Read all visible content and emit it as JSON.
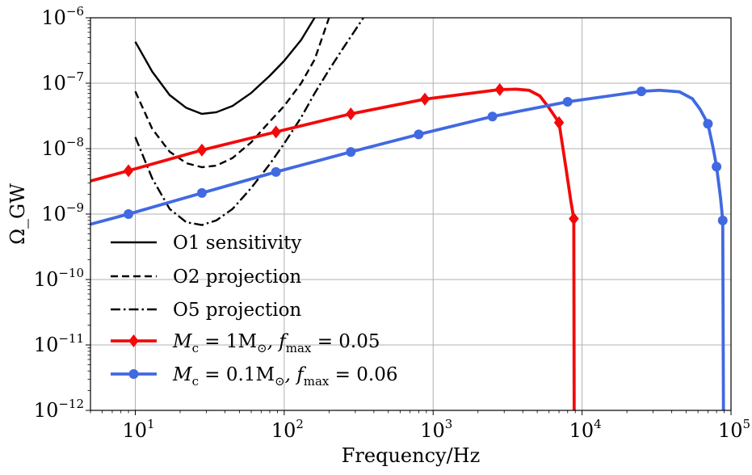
{
  "chart_data": {
    "type": "line",
    "xscale": "log",
    "yscale": "log",
    "xlim": [
      5,
      100000
    ],
    "ylim": [
      1e-12,
      1e-06
    ],
    "xlabel": "Frequency/Hz",
    "ylabel": "Ω_GW",
    "grid": true,
    "legend_position": "lower-left",
    "x_ticks": [
      {
        "value": 10,
        "base": "10",
        "exp": "1"
      },
      {
        "value": 100,
        "base": "10",
        "exp": "2"
      },
      {
        "value": 1000,
        "base": "10",
        "exp": "3"
      },
      {
        "value": 10000,
        "base": "10",
        "exp": "4"
      },
      {
        "value": 100000,
        "base": "10",
        "exp": "5"
      }
    ],
    "y_ticks": [
      {
        "value": 1e-12,
        "base": "10",
        "exp": "−12"
      },
      {
        "value": 1e-11,
        "base": "10",
        "exp": "−11"
      },
      {
        "value": 1e-10,
        "base": "10",
        "exp": "−10"
      },
      {
        "value": 1e-09,
        "base": "10",
        "exp": "−9"
      },
      {
        "value": 1e-08,
        "base": "10",
        "exp": "−8"
      },
      {
        "value": 1e-07,
        "base": "10",
        "exp": "−7"
      },
      {
        "value": 1e-06,
        "base": "10",
        "exp": "−6"
      }
    ],
    "series": [
      {
        "name": "O1 sensitivity",
        "color": "#000000",
        "style": "solid",
        "marker": "none",
        "x": [
          10,
          13,
          17,
          22,
          28,
          35,
          45,
          60,
          80,
          100,
          130,
          160
        ],
        "y": [
          4.3e-07,
          1.5e-07,
          6.6e-08,
          4.2e-08,
          3.4e-08,
          3.6e-08,
          4.5e-08,
          7.1e-08,
          1.3e-07,
          2.2e-07,
          4.6e-07,
          1e-06
        ]
      },
      {
        "name": "O2 projection",
        "color": "#000000",
        "style": "dashed",
        "marker": "none",
        "x": [
          10,
          13,
          17,
          22,
          28,
          35,
          45,
          60,
          80,
          100,
          130,
          160,
          200
        ],
        "y": [
          7.5e-08,
          2e-08,
          9e-09,
          6e-09,
          5.2e-09,
          5.5e-09,
          7.2e-09,
          1.25e-08,
          2.6e-08,
          4.5e-08,
          1e-07,
          2.3e-07,
          1e-06
        ]
      },
      {
        "name": "O5 projection",
        "color": "#000000",
        "style": "dashdot",
        "marker": "none",
        "x": [
          10,
          13,
          17,
          22,
          28,
          35,
          45,
          60,
          80,
          100,
          130,
          160,
          200,
          250,
          300,
          340
        ],
        "y": [
          1.5e-08,
          3.5e-09,
          1.2e-09,
          7.5e-10,
          6.8e-10,
          8e-10,
          1.2e-09,
          2.5e-09,
          5.8e-09,
          1.2e-08,
          3e-08,
          7e-08,
          1.6e-07,
          3.5e-07,
          6.5e-07,
          1e-06
        ]
      },
      {
        "name": "M_c = 1M_⊙, f_max = 0.05",
        "legend_parts": [
          "M",
          "c",
          " = 1M",
          "⊙",
          ", f",
          "max",
          " = 0.05"
        ],
        "color": "#f20a0a",
        "style": "solid",
        "marker": "diamond",
        "x": [
          5,
          9,
          28,
          88,
          280,
          880,
          2800,
          3600,
          4400,
          5200,
          6000,
          7000,
          7800,
          8400,
          8800,
          8850
        ],
        "y": [
          3.2e-09,
          4.6e-09,
          9.5e-09,
          1.8e-08,
          3.4e-08,
          5.7e-08,
          8e-08,
          8.1e-08,
          7.8e-08,
          6.4e-08,
          4.2e-08,
          2.5e-08,
          5e-09,
          1.6e-09,
          8.5e-10,
          1e-12
        ],
        "marker_points": [
          {
            "x": 9,
            "y": 4.6e-09
          },
          {
            "x": 28,
            "y": 9.5e-09
          },
          {
            "x": 88,
            "y": 1.8e-08
          },
          {
            "x": 280,
            "y": 3.4e-08
          },
          {
            "x": 880,
            "y": 5.7e-08
          },
          {
            "x": 2800,
            "y": 8e-08
          },
          {
            "x": 7000,
            "y": 2.5e-08
          },
          {
            "x": 8800,
            "y": 8.5e-10
          }
        ]
      },
      {
        "name": "M_c = 0.1M_⊙, f_max = 0.06",
        "legend_parts": [
          "M",
          "c",
          " = 0.1M",
          "⊙",
          ", f",
          "max",
          " = 0.06"
        ],
        "color": "#4169e1",
        "style": "solid",
        "marker": "circle",
        "x": [
          5,
          9,
          28,
          88,
          280,
          800,
          2500,
          8000,
          25000,
          33000,
          45000,
          55000,
          62000,
          70000,
          76000,
          80000,
          85000,
          88000,
          89000
        ],
        "y": [
          7e-10,
          1e-09,
          2.1e-09,
          4.4e-09,
          8.9e-09,
          1.65e-08,
          3.1e-08,
          5.2e-08,
          7.5e-08,
          7.8e-08,
          7.4e-08,
          5.8e-08,
          4e-08,
          2.4e-08,
          1e-08,
          5.3e-09,
          1.8e-09,
          8e-10,
          1e-12
        ],
        "marker_points": [
          {
            "x": 9,
            "y": 1e-09
          },
          {
            "x": 28,
            "y": 2.1e-09
          },
          {
            "x": 88,
            "y": 4.4e-09
          },
          {
            "x": 280,
            "y": 8.9e-09
          },
          {
            "x": 800,
            "y": 1.65e-08
          },
          {
            "x": 2500,
            "y": 3.1e-08
          },
          {
            "x": 8000,
            "y": 5.2e-08
          },
          {
            "x": 25000,
            "y": 7.5e-08
          },
          {
            "x": 70000,
            "y": 2.4e-08
          },
          {
            "x": 80000,
            "y": 5.3e-09
          },
          {
            "x": 88000,
            "y": 8e-10
          }
        ]
      }
    ]
  }
}
